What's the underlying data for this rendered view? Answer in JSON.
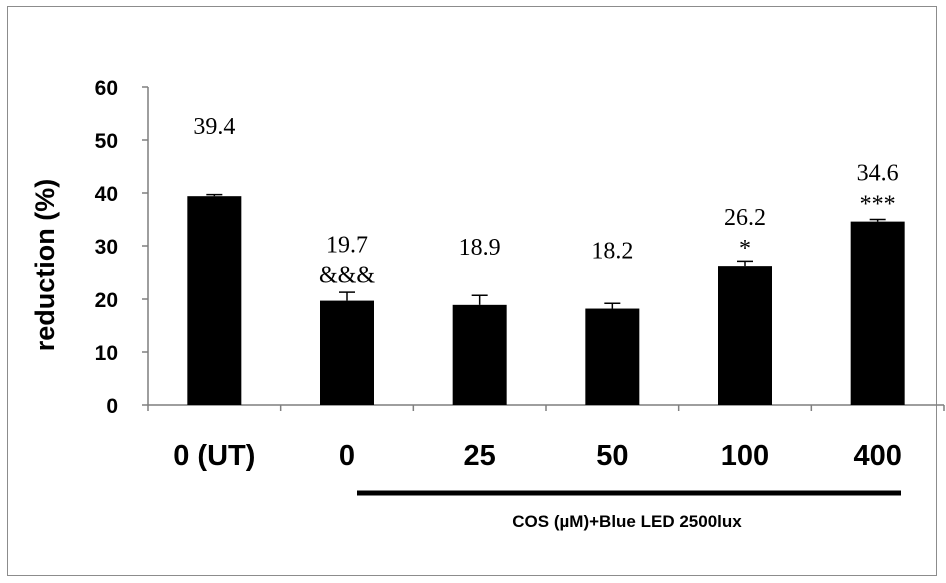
{
  "chart_data": {
    "type": "bar",
    "categories": [
      "0 (UT)",
      "0",
      "25",
      "50",
      "100",
      "400"
    ],
    "values": [
      39.4,
      19.7,
      18.9,
      18.2,
      26.2,
      34.6
    ],
    "errors": [
      0.3,
      1.6,
      1.8,
      1.0,
      0.9,
      0.4
    ],
    "value_labels": [
      "39.4",
      "19.7",
      "18.9",
      "18.2",
      "26.2",
      "34.6"
    ],
    "significance_labels": [
      "",
      "&&&",
      "",
      "",
      "*",
      "***"
    ],
    "ylabel": "reduction (%)",
    "ylim": [
      0,
      60
    ],
    "yticks": [
      0,
      10,
      20,
      30,
      40,
      50,
      60
    ],
    "group_label": "COS (µM)+Blue LED 2500lux",
    "bar_color": "#000000",
    "grid": false
  }
}
